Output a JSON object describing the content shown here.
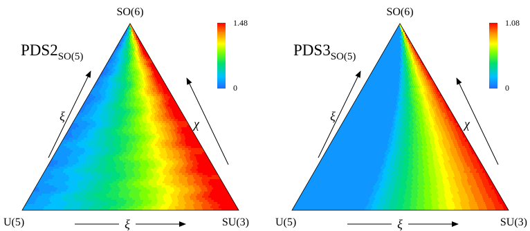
{
  "chart_data": [
    {
      "type": "heatmap",
      "panel": "PDS2",
      "title": {
        "main": "PDS2",
        "sub": "SO(5)"
      },
      "vertices": {
        "top": "SO(6)",
        "left": "U(5)",
        "right": "SU(3)"
      },
      "edge_labels": {
        "left": "ξ",
        "right": "χ",
        "bottom": "ξ"
      },
      "colorbar": {
        "min": 0,
        "max": 1.48,
        "min_label": "0",
        "max_label": "1.48"
      },
      "contour_levels": 22,
      "field_description": {
        "along_left_edge": [
          0.05,
          0.05,
          0.08,
          0.1,
          0.12,
          0.15
        ],
        "toward_right_edge": [
          0.45,
          0.8,
          1.05,
          1.2,
          1.35,
          1.48
        ]
      }
    },
    {
      "type": "heatmap",
      "panel": "PDS3",
      "title": {
        "main": "PDS3",
        "sub": "SO(5)"
      },
      "vertices": {
        "top": "SO(6)",
        "left": "U(5)",
        "right": "SU(3)"
      },
      "edge_labels": {
        "left": "ξ",
        "right": "χ",
        "bottom": "ξ"
      },
      "colorbar": {
        "min": 0,
        "max": 1.08,
        "min_label": "0",
        "max_label": "1.08"
      },
      "contour_levels": 22,
      "field_description": {
        "left_region": 0.08,
        "band_start_fraction": 0.42,
        "right_edge_value": 1.08
      }
    }
  ]
}
